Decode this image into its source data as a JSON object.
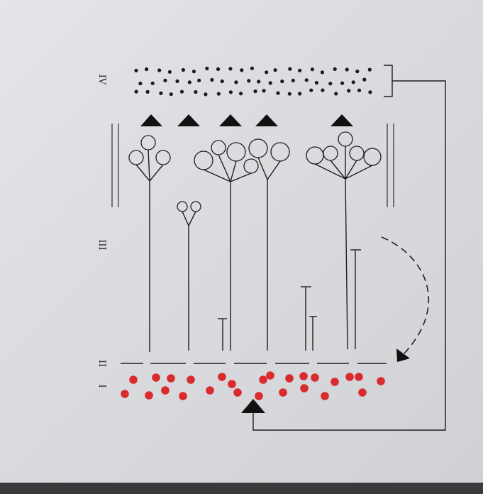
{
  "layers": {
    "label_iv": "IV",
    "label_iii": "III",
    "label_ii": "II",
    "label_i": "I"
  },
  "colors": {
    "red_dots": "#d92b2e",
    "black_dots": "#1b1b1b",
    "lines": "#1e1e1e"
  }
}
